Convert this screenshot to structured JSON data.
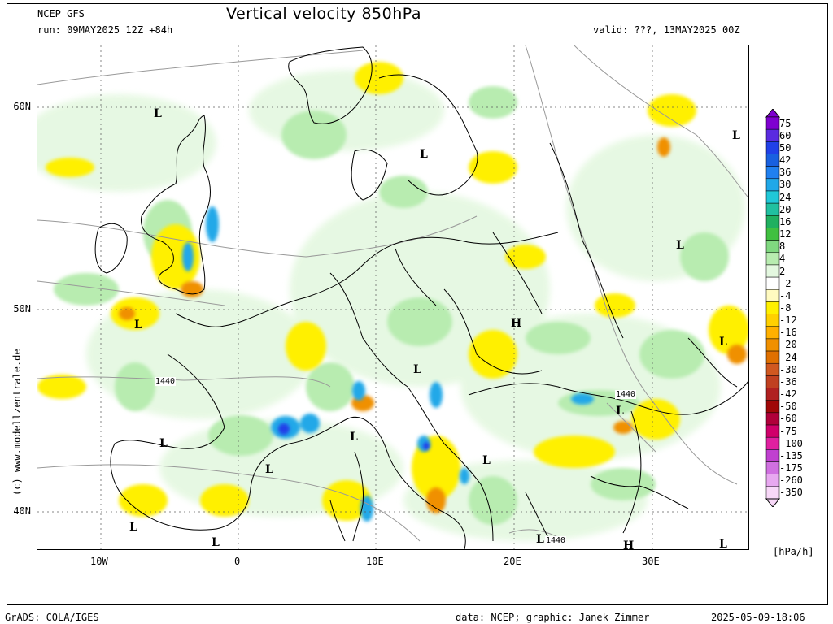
{
  "header": {
    "model": "NCEP GFS",
    "title": "Vertical velocity 850hPa",
    "run": "run: 09MAY2025 12Z +84h",
    "valid": "valid: ???, 13MAY2025 00Z"
  },
  "axes": {
    "lat_labels": [
      "60N",
      "50N",
      "40N"
    ],
    "lon_labels": [
      "10W",
      "0",
      "10E",
      "20E",
      "30E"
    ]
  },
  "side_text": "(c) www.modellzentrale.de",
  "colorbar": {
    "unit": "[hPa/h]",
    "levels": [
      "75",
      "60",
      "50",
      "42",
      "36",
      "30",
      "24",
      "20",
      "16",
      "12",
      "8",
      "4",
      "2",
      "-2",
      "-4",
      "-8",
      "-12",
      "-16",
      "-20",
      "-24",
      "-30",
      "-36",
      "-42",
      "-50",
      "-60",
      "-75",
      "-100",
      "-135",
      "-175",
      "-260",
      "-350"
    ],
    "colors": [
      "#7f00d0",
      "#5a2be0",
      "#2040e8",
      "#1860e0",
      "#2080f0",
      "#20a8e8",
      "#20c8d8",
      "#20c0a0",
      "#20b060",
      "#40c040",
      "#80d880",
      "#b8ecb0",
      "#e4f8e0",
      "#ffffff",
      "#fffac0",
      "#fff000",
      "#ffd000",
      "#ffb000",
      "#f09000",
      "#e07000",
      "#d05820",
      "#c04020",
      "#b02020",
      "#a00808",
      "#b0003a",
      "#d0006a",
      "#e020a0",
      "#c040d0",
      "#d070e0",
      "#e8a8f0",
      "#f8d8f8"
    ]
  },
  "pressure_labels": {
    "L": "L",
    "H": "H",
    "contour": "1440"
  },
  "footer": {
    "left": "GrADS: COLA/IGES",
    "center": "data: NCEP; graphic: Janek Zimmer",
    "right": "2025-05-09-18:06"
  }
}
